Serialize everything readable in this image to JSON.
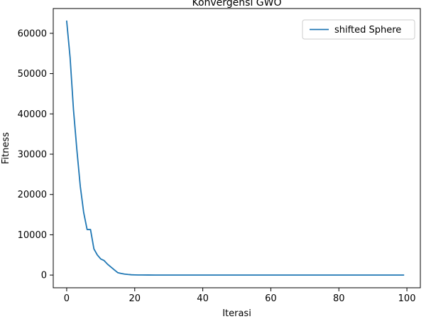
{
  "chart_data": {
    "type": "line",
    "title": "Konvergensi GWO",
    "xlabel": "Iterasi",
    "ylabel": "Fitness",
    "xlim": [
      -3.95,
      103.95
    ],
    "ylim": [
      -3150,
      66150
    ],
    "xticks": [
      0,
      20,
      40,
      60,
      80,
      100
    ],
    "yticks": [
      0,
      10000,
      20000,
      30000,
      40000,
      50000,
      60000
    ],
    "grid": false,
    "legend_position": "top-right",
    "line_color": "#1f77b4",
    "series": [
      {
        "name": "shifted Sphere",
        "x": [
          0,
          1,
          2,
          3,
          4,
          5,
          6,
          7,
          8,
          9,
          10,
          11,
          12,
          13,
          14,
          15,
          16,
          17,
          18,
          19,
          20,
          21,
          22,
          24,
          26,
          28,
          30,
          35,
          40,
          45,
          50,
          55,
          60,
          65,
          70,
          75,
          80,
          85,
          90,
          95,
          99
        ],
        "y": [
          63000,
          54000,
          41000,
          31000,
          22000,
          15500,
          11300,
          11300,
          6500,
          5000,
          4000,
          3600,
          2700,
          2000,
          1300,
          600,
          400,
          250,
          150,
          80,
          50,
          30,
          20,
          10,
          5,
          3,
          2,
          1,
          1,
          1,
          1,
          1,
          1,
          1,
          1,
          1,
          1,
          1,
          1,
          1,
          1
        ]
      }
    ]
  }
}
